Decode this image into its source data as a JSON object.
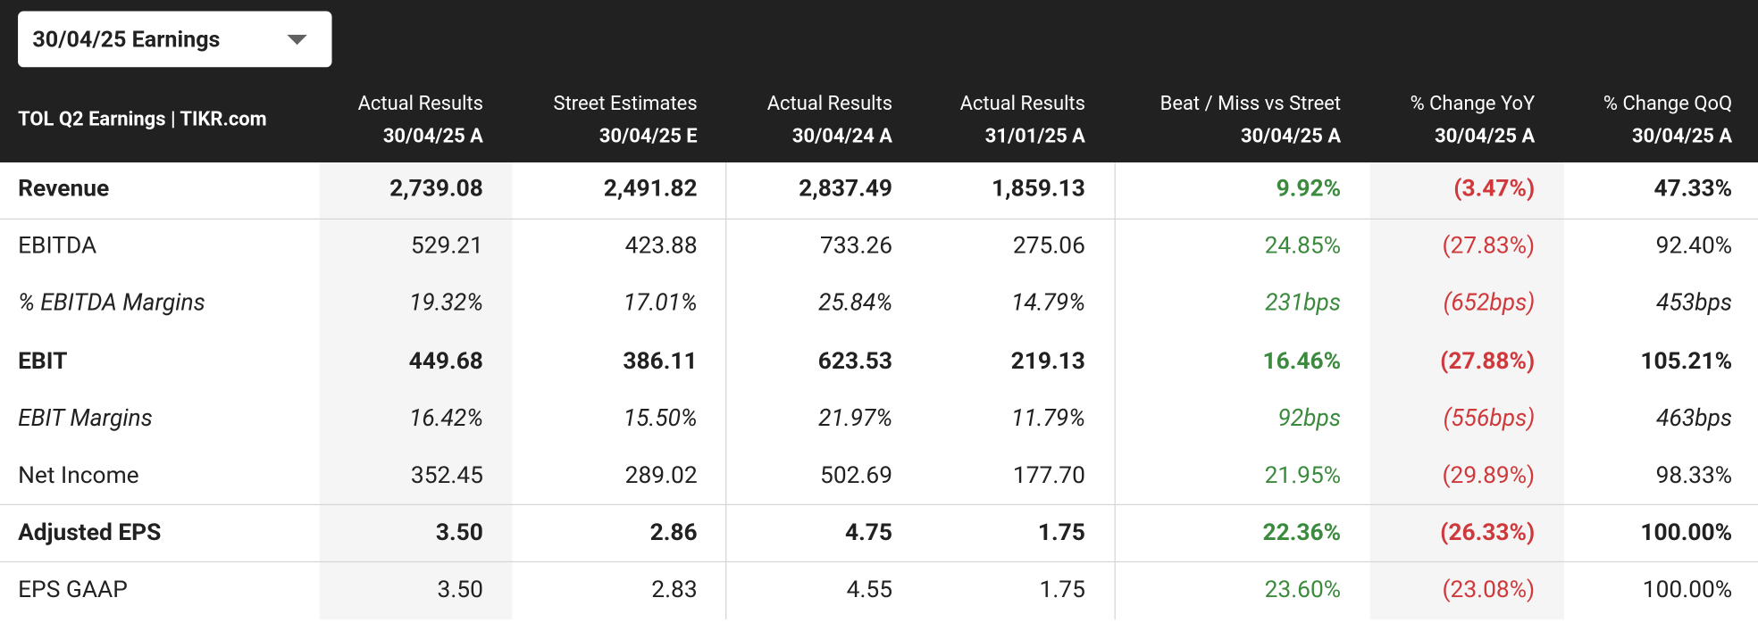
{
  "dropdown": "30/04/25 Earnings",
  "table": {
    "title": "TOL Q2 Earnings | TIKR.com",
    "columns": [
      [
        "Actual Results",
        "30/04/25 A"
      ],
      [
        "Street Estimates",
        "30/04/25 E"
      ],
      [
        "Actual Results",
        "30/04/24 A"
      ],
      [
        "Actual Results",
        "31/01/25 A"
      ],
      [
        "Beat / Miss vs Street",
        "30/04/25 A"
      ],
      [
        "% Change YoY",
        "30/04/25 A"
      ],
      [
        "% Change QoQ",
        "30/04/25 A"
      ]
    ],
    "rows": [
      {
        "label": "Revenue",
        "style": "bold",
        "values": [
          "2,739.08",
          "2,491.82",
          "2,837.49",
          "1,859.13",
          "9.92%",
          "(3.47%)",
          "47.33%"
        ]
      },
      {
        "label": "EBITDA",
        "style": "normal",
        "values": [
          "529.21",
          "423.88",
          "733.26",
          "275.06",
          "24.85%",
          "(27.83%)",
          "92.40%"
        ]
      },
      {
        "label": "% EBITDA Margins",
        "style": "italic",
        "values": [
          "19.32%",
          "17.01%",
          "25.84%",
          "14.79%",
          "231bps",
          "(652bps)",
          "453bps"
        ]
      },
      {
        "label": "EBIT",
        "style": "bold",
        "values": [
          "449.68",
          "386.11",
          "623.53",
          "219.13",
          "16.46%",
          "(27.88%)",
          "105.21%"
        ]
      },
      {
        "label": "EBIT Margins",
        "style": "italic",
        "values": [
          "16.42%",
          "15.50%",
          "21.97%",
          "11.79%",
          "92bps",
          "(556bps)",
          "463bps"
        ]
      },
      {
        "label": "Net Income",
        "style": "normal",
        "values": [
          "352.45",
          "289.02",
          "502.69",
          "177.70",
          "21.95%",
          "(29.89%)",
          "98.33%"
        ]
      },
      {
        "label": "Adjusted EPS",
        "style": "bold",
        "values": [
          "3.50",
          "2.86",
          "4.75",
          "1.75",
          "22.36%",
          "(26.33%)",
          "100.00%"
        ]
      },
      {
        "label": "EPS GAAP",
        "style": "normal",
        "values": [
          "3.50",
          "2.83",
          "4.55",
          "1.75",
          "23.60%",
          "(23.08%)",
          "100.00%"
        ]
      }
    ]
  }
}
